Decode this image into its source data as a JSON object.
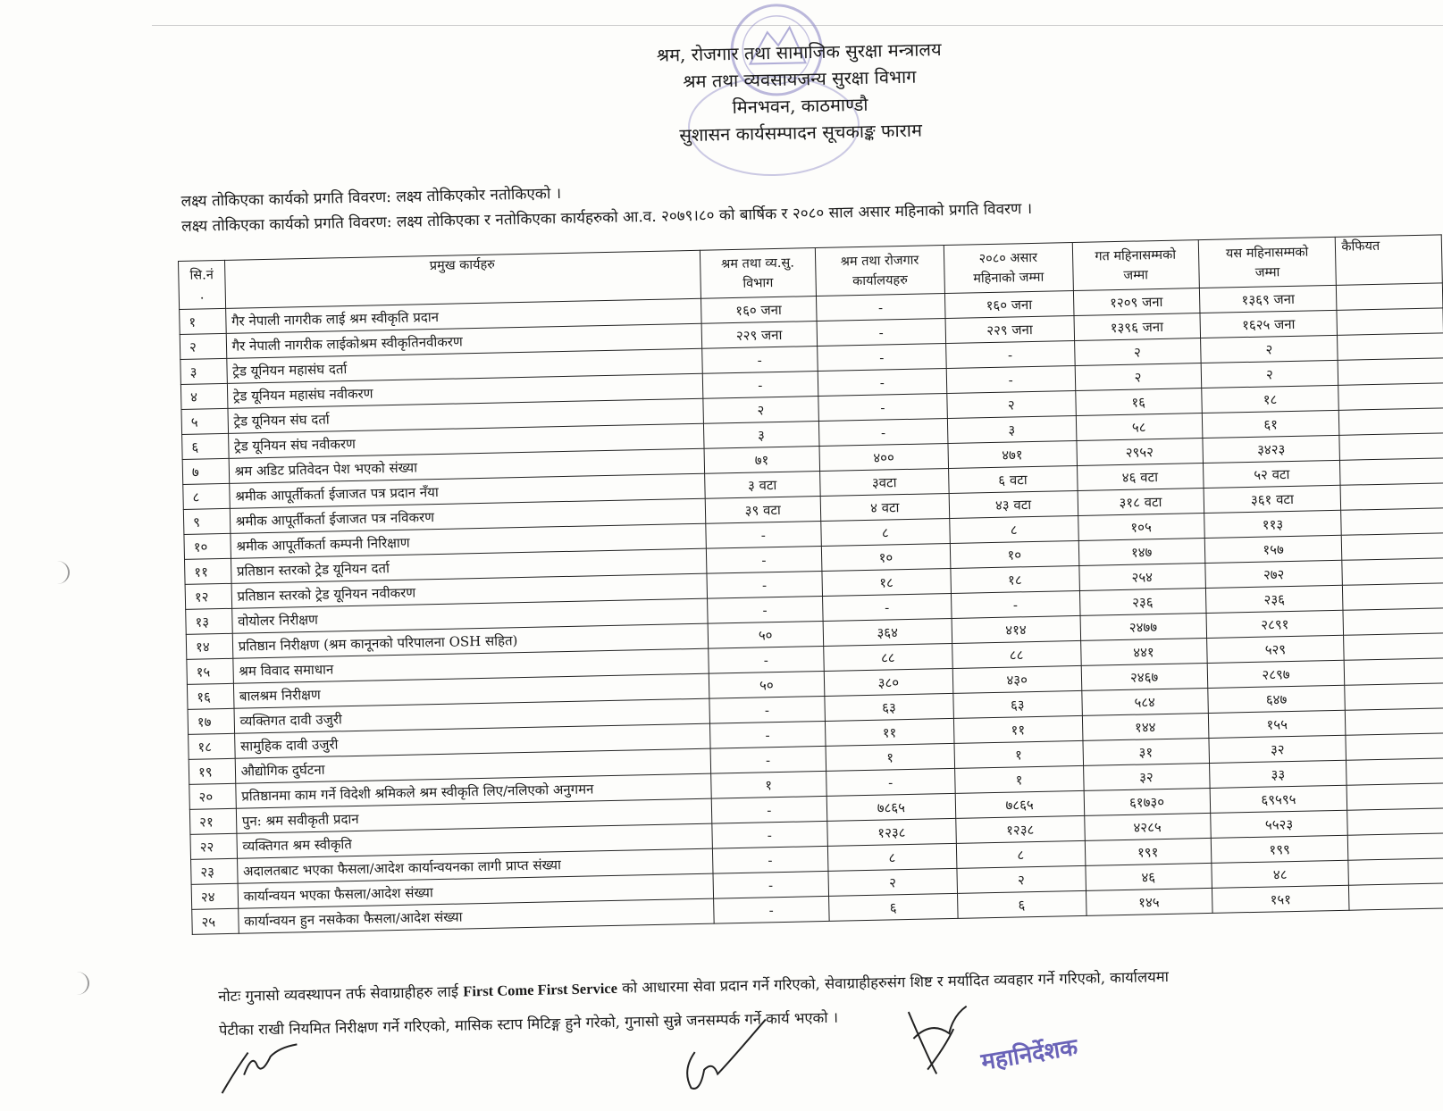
{
  "header": {
    "ministry": "श्रम, रोजगार तथा सामाजिक सुरक्षा मन्त्रालय",
    "department": "श्रम तथा व्यवसायजन्य सुरक्षा विभाग",
    "location": "मिनभवन, काठमाण्डौ",
    "form_title": "सुशासन कार्यसम्पादन सूचकाङ्क फाराम"
  },
  "intro": {
    "line1": "लक्ष्य तोकिएका कार्यको प्रगति विवरण: लक्ष्य तोकिएकोर नतोकिएको ।",
    "line2": "लक्ष्य तोकिएका कार्यको प्रगति विवरण: लक्ष्य तोकिएका र नतोकिएका कार्यहरुको आ.व. २०७९।८० को बार्षिक र २०८० साल असार महिनाको प्रगति विवरण ।"
  },
  "table": {
    "columns": {
      "sn": "सि.नं",
      "sn_dot": ".",
      "task": "प्रमुख कार्यहरु",
      "dept_1": "श्रम तथा व्य.सु.",
      "dept_2": "विभाग",
      "offices_1": "श्रम तथा रोजगार",
      "offices_2": "कार्यालयहरु",
      "month_1": "२०८० असार",
      "month_2": "महिनाको जम्मा",
      "prev_1": "गत महिनासम्मको",
      "prev_2": "जम्मा",
      "curr_1": "यस महिनासम्मको",
      "curr_2": "जम्मा",
      "remarks": "कैफियत"
    },
    "rows": [
      {
        "sn": "१",
        "task": "गैर नेपाली नागरीक लाई श्रम स्वीकृति प्रदान",
        "dept": "१६० जना",
        "offices": "-",
        "month": "१६० जना",
        "prev": "१२०९ जना",
        "curr": "१३६९ जना"
      },
      {
        "sn": "२",
        "task": "गैर नेपाली नागरीक लाईकोश्रम स्वीकृतिनवीकरण",
        "dept": "२२९ जना",
        "offices": "-",
        "month": "२२९ जना",
        "prev": "१३९६ जना",
        "curr": "१६२५ जना"
      },
      {
        "sn": "३",
        "task": "ट्रेड यूनियन महासंघ दर्ता",
        "dept": "-",
        "offices": "-",
        "month": "-",
        "prev": "२",
        "curr": "२"
      },
      {
        "sn": "४",
        "task": "ट्रेड यूनियन महासंघ नवीकरण",
        "dept": "-",
        "offices": "-",
        "month": "-",
        "prev": "२",
        "curr": "२"
      },
      {
        "sn": "५",
        "task": "ट्रेड यूनियन संघ दर्ता",
        "dept": "२",
        "offices": "-",
        "month": "२",
        "prev": "१६",
        "curr": "१८"
      },
      {
        "sn": "६",
        "task": "ट्रेड यूनियन संघ नवीकरण",
        "dept": "३",
        "offices": "-",
        "month": "३",
        "prev": "५८",
        "curr": "६१"
      },
      {
        "sn": "७",
        "task": "श्रम अडिट प्रतिवेदन पेश भएको संख्या",
        "dept": "७१",
        "offices": "४००",
        "month": "४७१",
        "prev": "२९५२",
        "curr": "३४२३"
      },
      {
        "sn": "८",
        "task": "श्रमीक आपूर्तीकर्ता ईजाजत पत्र प्रदान नँया",
        "dept": "३ वटा",
        "offices": "३वटा",
        "month": "६ वटा",
        "prev": "४६ वटा",
        "curr": "५२ वटा"
      },
      {
        "sn": "९",
        "task": "श्रमीक आपूर्तीकर्ता ईजाजत पत्र नविकरण",
        "dept": "३९ वटा",
        "offices": "४ वटा",
        "month": "४३ वटा",
        "prev": "३१८ वटा",
        "curr": "३६१ वटा"
      },
      {
        "sn": "१०",
        "task": "श्रमीक आपूर्तीकर्ता कम्पनी निरिक्षाण",
        "dept": "-",
        "offices": "८",
        "month": "८",
        "prev": "१०५",
        "curr": "११३"
      },
      {
        "sn": "११",
        "task": "प्रतिष्ठान स्तरको ट्रेड यूनियन दर्ता",
        "dept": "-",
        "offices": "१०",
        "month": "१०",
        "prev": "१४७",
        "curr": "१५७"
      },
      {
        "sn": "१२",
        "task": "प्रतिष्ठान स्तरको ट्रेड यूनियन  नवीकरण",
        "dept": "-",
        "offices": "१८",
        "month": "१८",
        "prev": "२५४",
        "curr": "२७२"
      },
      {
        "sn": "१३",
        "task": "वोयोलर निरीक्षण",
        "dept": "-",
        "offices": "-",
        "month": "-",
        "prev": "२३६",
        "curr": "२३६"
      },
      {
        "sn": "१४",
        "task": "प्रतिष्ठान निरीक्षण (श्रम कानूनको परिपालना OSH सहित)",
        "dept": "५०",
        "offices": "३६४",
        "month": "४१४",
        "prev": "२४७७",
        "curr": "२८९१"
      },
      {
        "sn": "१५",
        "task": "श्रम विवाद समाधान",
        "dept": "-",
        "offices": "८८",
        "month": "८८",
        "prev": "४४१",
        "curr": "५२९"
      },
      {
        "sn": "१६",
        "task": "बालश्रम निरीक्षण",
        "dept": "५०",
        "offices": "३८०",
        "month": "४३०",
        "prev": "२४६७",
        "curr": "२८९७"
      },
      {
        "sn": "१७",
        "task": "व्यक्तिगत दावी उजुरी",
        "dept": "-",
        "offices": "६३",
        "month": "६३",
        "prev": "५८४",
        "curr": "६४७"
      },
      {
        "sn": "१८",
        "task": "सामुहिक दावी उजुरी",
        "dept": "-",
        "offices": "११",
        "month": "११",
        "prev": "१४४",
        "curr": "१५५"
      },
      {
        "sn": "१९",
        "task": "औद्योगिक दुर्घटना",
        "dept": "-",
        "offices": "१",
        "month": "१",
        "prev": "३१",
        "curr": "३२"
      },
      {
        "sn": "२०",
        "task": "प्रतिष्ठानमा काम गर्ने विदेशी श्रमिकले श्रम स्वीकृति लिए/नलिएको अनुगमन",
        "dept": "१",
        "offices": "-",
        "month": "१",
        "prev": "३२",
        "curr": "३३"
      },
      {
        "sn": "२१",
        "task": "पुन: श्रम सवीकृती प्रदान",
        "dept": "-",
        "offices": "७८६५",
        "month": "७८६५",
        "prev": "६१७३०",
        "curr": "६९५९५"
      },
      {
        "sn": "२२",
        "task": "व्यक्तिगत श्रम स्वीकृति",
        "dept": "-",
        "offices": "१२३८",
        "month": "१२३८",
        "prev": "४२८५",
        "curr": "५५२३"
      },
      {
        "sn": "२३",
        "task": "अदालतबाट भएका फैसला/आदेश कार्यान्वयनका लागी प्राप्त संख्या",
        "dept": "-",
        "offices": "८",
        "month": "८",
        "prev": "१९१",
        "curr": "१९९"
      },
      {
        "sn": "२४",
        "task": "कार्यान्वयन भएका फैसला/आदेश संख्या",
        "dept": "-",
        "offices": "२",
        "month": "२",
        "prev": "४६",
        "curr": "४८"
      },
      {
        "sn": "२५",
        "task": "कार्यान्वयन हुन नसकेका फैसला/आदेश संख्या",
        "dept": "-",
        "offices": "६",
        "month": "६",
        "prev": "१४५",
        "curr": "१५१"
      }
    ]
  },
  "note": {
    "line1_pre": "नोटः गुनासो व्यवस्थापन तर्फ सेवाग्राहीहरु लाई",
    "line1_bold": "First Come First Service",
    "line1_post": "को आधारमा सेवा प्रदान गर्ने गरिएको, सेवाग्राहीहरुसंग शिष्ट र मर्यादित व्यवहार गर्ने गरिएको, कार्यालयमा",
    "line2": "पेटीका राखी नियमित निरीक्षण गर्ने गरिएको, मासिक स्टाप मिटिङ्ग हुने गरेको, गुनासो सुन्ने जनसम्पर्क गर्ने कार्य भएको ।"
  },
  "stamp": {
    "title": "महानिर्देशक",
    "color": "#6a63b8"
  }
}
